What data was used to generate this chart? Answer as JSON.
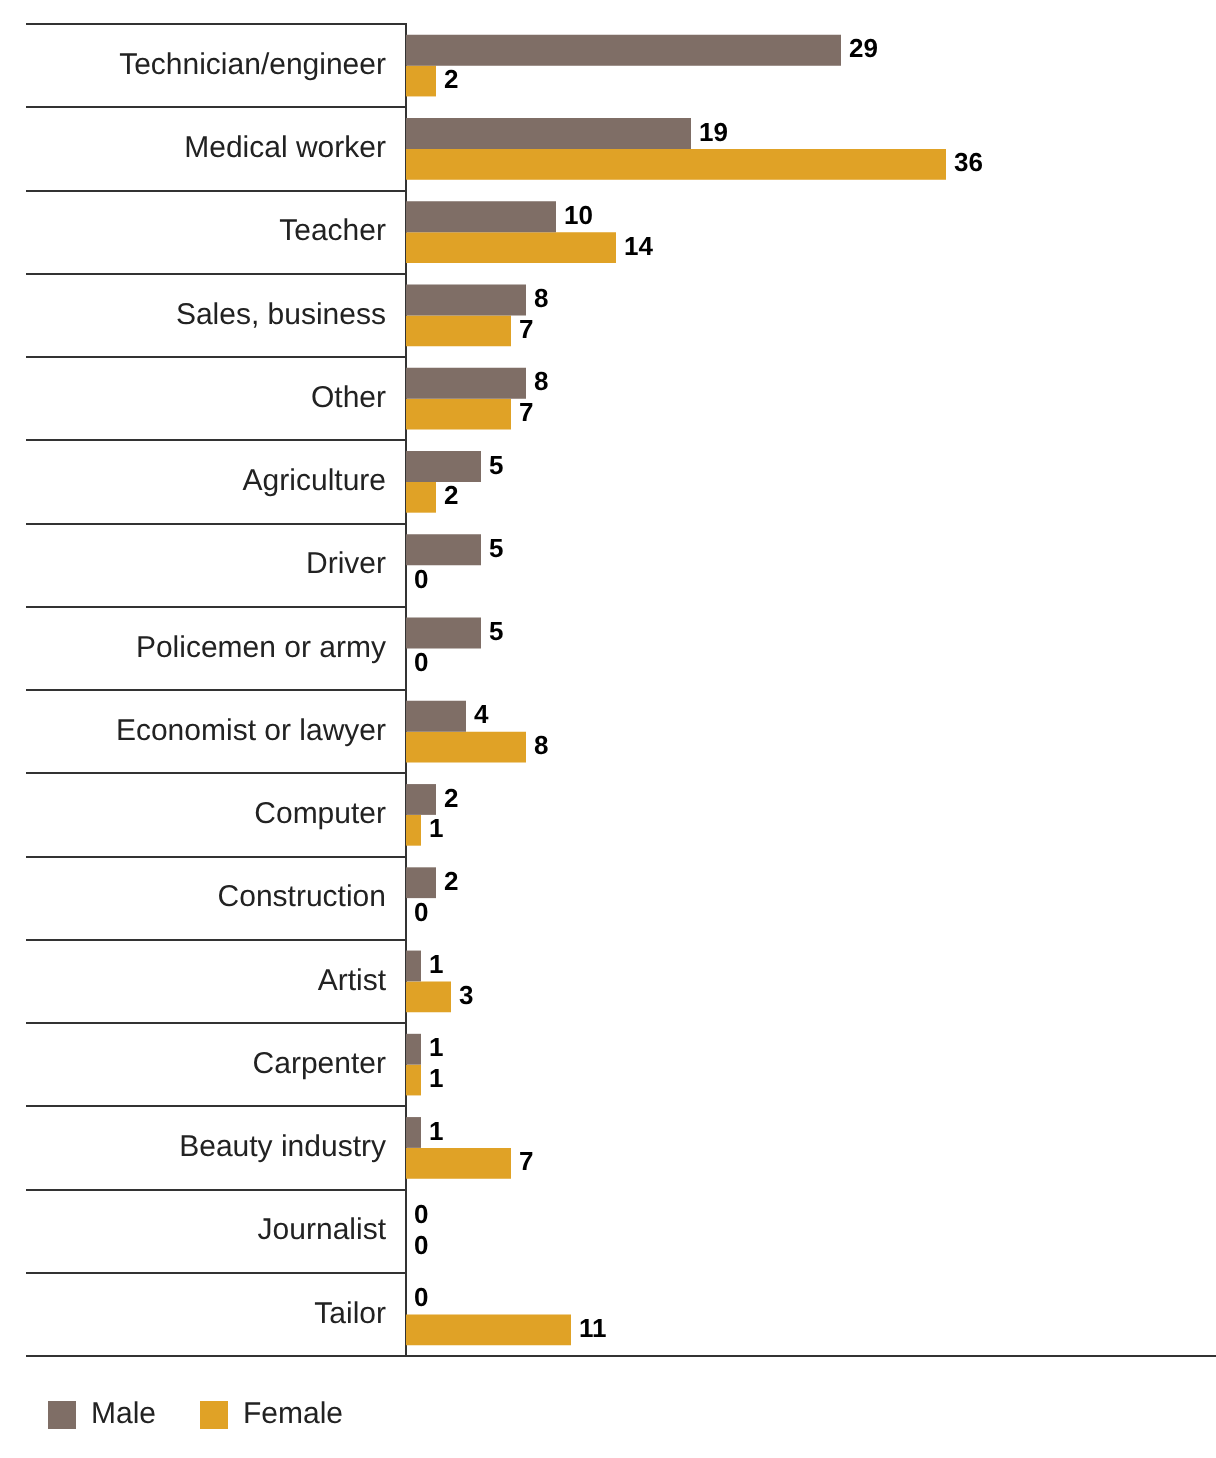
{
  "chart_data": {
    "type": "bar",
    "orientation": "horizontal",
    "categories": [
      "Technician/engineer",
      "Medical worker",
      "Teacher",
      "Sales, business",
      "Other",
      "Agriculture",
      "Driver",
      "Policemen or army",
      "Economist or lawyer",
      "Computer",
      "Construction",
      "Artist",
      "Carpenter",
      "Beauty industry",
      "Journalist",
      "Tailor"
    ],
    "series": [
      {
        "name": "Male",
        "color": "#7f6e66",
        "values": [
          29,
          19,
          10,
          8,
          8,
          5,
          5,
          5,
          4,
          2,
          2,
          1,
          1,
          1,
          0,
          0
        ]
      },
      {
        "name": "Female",
        "color": "#e0a226",
        "values": [
          2,
          36,
          14,
          7,
          7,
          2,
          0,
          0,
          8,
          1,
          0,
          3,
          1,
          7,
          0,
          11
        ]
      }
    ],
    "xlim": [
      0,
      54
    ],
    "tick_labels": "y",
    "grid": false,
    "legend": "bottom left",
    "data_labels": true
  }
}
